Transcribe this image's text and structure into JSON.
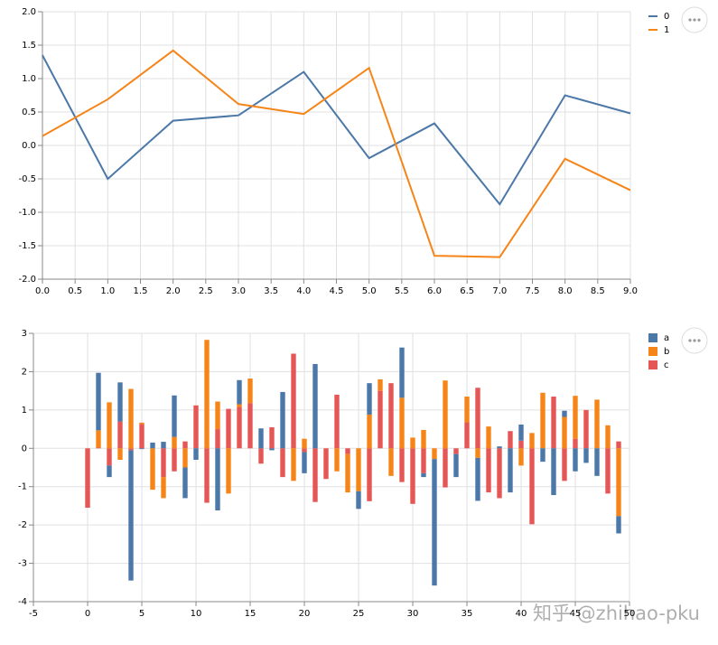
{
  "chart_data": [
    {
      "type": "line",
      "x": [
        0,
        1,
        2,
        3,
        4,
        5,
        6,
        7,
        8,
        9
      ],
      "series": [
        {
          "name": "0",
          "color": "#4c78a8",
          "values": [
            1.35,
            -0.5,
            0.37,
            0.45,
            1.1,
            -0.19,
            0.33,
            -0.88,
            0.75,
            0.48
          ]
        },
        {
          "name": "1",
          "color": "#f58518",
          "values": [
            0.14,
            0.69,
            1.42,
            0.62,
            0.47,
            1.16,
            -1.65,
            -1.67,
            -0.2,
            -0.67
          ]
        }
      ],
      "xlim": [
        0,
        9
      ],
      "xticks": [
        {
          "value": 0,
          "label": "0.0"
        },
        0.5,
        {
          "value": 1,
          "label": "1.0"
        },
        1.5,
        {
          "value": 2,
          "label": "2.0"
        },
        2.5,
        {
          "value": 3,
          "label": "3.0"
        },
        3.5,
        {
          "value": 4,
          "label": "4.0"
        },
        4.5,
        {
          "value": 5,
          "label": "5.0"
        },
        5.5,
        {
          "value": 6,
          "label": "6.0"
        },
        6.5,
        {
          "value": 7,
          "label": "7.0"
        },
        7.5,
        {
          "value": 8,
          "label": "8.0"
        },
        8.5,
        {
          "value": 9,
          "label": "9.0"
        }
      ],
      "ylim": [
        -2,
        2
      ],
      "yticks": [
        {
          "value": -2,
          "label": "-2.0"
        },
        -1.5,
        {
          "value": -1,
          "label": "-1.0"
        },
        -0.5,
        {
          "value": 0,
          "label": "0.0"
        },
        0.5,
        {
          "value": 1,
          "label": "1.0"
        },
        1.5,
        {
          "value": 2,
          "label": "2.0"
        }
      ],
      "grid": true,
      "legend": "right"
    },
    {
      "type": "bar",
      "stacked": true,
      "x": [
        0,
        1,
        2,
        3,
        4,
        5,
        6,
        7,
        8,
        9,
        10,
        11,
        12,
        13,
        14,
        15,
        16,
        17,
        18,
        19,
        20,
        21,
        22,
        23,
        24,
        25,
        26,
        27,
        28,
        29,
        30,
        31,
        32,
        33,
        34,
        35,
        36,
        37,
        38,
        39,
        40,
        41,
        42,
        43,
        44,
        45,
        46,
        47,
        48,
        49
      ],
      "series": [
        {
          "name": "a",
          "color": "#4c78a8",
          "values": [
            0,
            1.5,
            -0.3,
            1.02,
            -3.4,
            -0.02,
            0.15,
            0.17,
            1.08,
            -0.8,
            -0.3,
            0,
            -1.62,
            0,
            0.63,
            0,
            0.52,
            -0.05,
            1.47,
            0,
            -0.55,
            2.2,
            0,
            0,
            0,
            -0.46,
            0.82,
            0,
            0,
            1.31,
            0,
            -0.1,
            -3.3,
            0,
            -0.6,
            0,
            -1.12,
            0,
            0.05,
            -1.15,
            0.42,
            0,
            -0.35,
            -1.22,
            0.16,
            -0.6,
            -0.38,
            -0.72,
            0,
            -0.45
          ]
        },
        {
          "name": "b",
          "color": "#f58518",
          "values": [
            0,
            0.45,
            1.2,
            -0.3,
            1.55,
            0.04,
            -1.08,
            -0.55,
            0.3,
            -0.5,
            0,
            2.83,
            0.72,
            -1.18,
            0.07,
            0.64,
            0,
            0,
            0,
            -0.85,
            0.25,
            0,
            0,
            -0.6,
            -1.0,
            -1.12,
            0.88,
            0.3,
            -0.72,
            1.32,
            0.28,
            0.48,
            -0.28,
            1.77,
            0,
            0.67,
            -0.25,
            0.57,
            0,
            0,
            -0.45,
            0.4,
            1.45,
            0,
            0.82,
            1.12,
            0,
            1.27,
            0.6,
            -1.77
          ]
        },
        {
          "name": "c",
          "color": "#e45756",
          "values": [
            -1.55,
            0.02,
            -0.45,
            0.7,
            -0.05,
            0.63,
            0,
            -0.75,
            -0.6,
            0.18,
            1.12,
            -1.42,
            0.5,
            1.03,
            1.08,
            1.18,
            -0.4,
            0.55,
            -0.75,
            2.47,
            -0.1,
            -1.4,
            -0.8,
            1.4,
            -0.15,
            0,
            -1.38,
            1.5,
            1.7,
            -0.88,
            -1.45,
            -0.65,
            0,
            -1.02,
            -0.15,
            0.68,
            1.58,
            -1.15,
            -1.3,
            0.45,
            0.2,
            -1.98,
            0,
            1.35,
            -0.85,
            0.25,
            1.0,
            0,
            -1.18,
            0.18
          ]
        }
      ],
      "xlim": [
        -5,
        50
      ],
      "xticks": [
        -5,
        0,
        5,
        10,
        15,
        20,
        25,
        30,
        35,
        40,
        45,
        50
      ],
      "ylim": [
        -4,
        3
      ],
      "yticks": [
        -4,
        -3,
        -2,
        -1,
        0,
        1,
        2,
        3
      ],
      "grid": true,
      "legend": "right"
    }
  ],
  "watermark": "知乎 @zhihao-pku"
}
